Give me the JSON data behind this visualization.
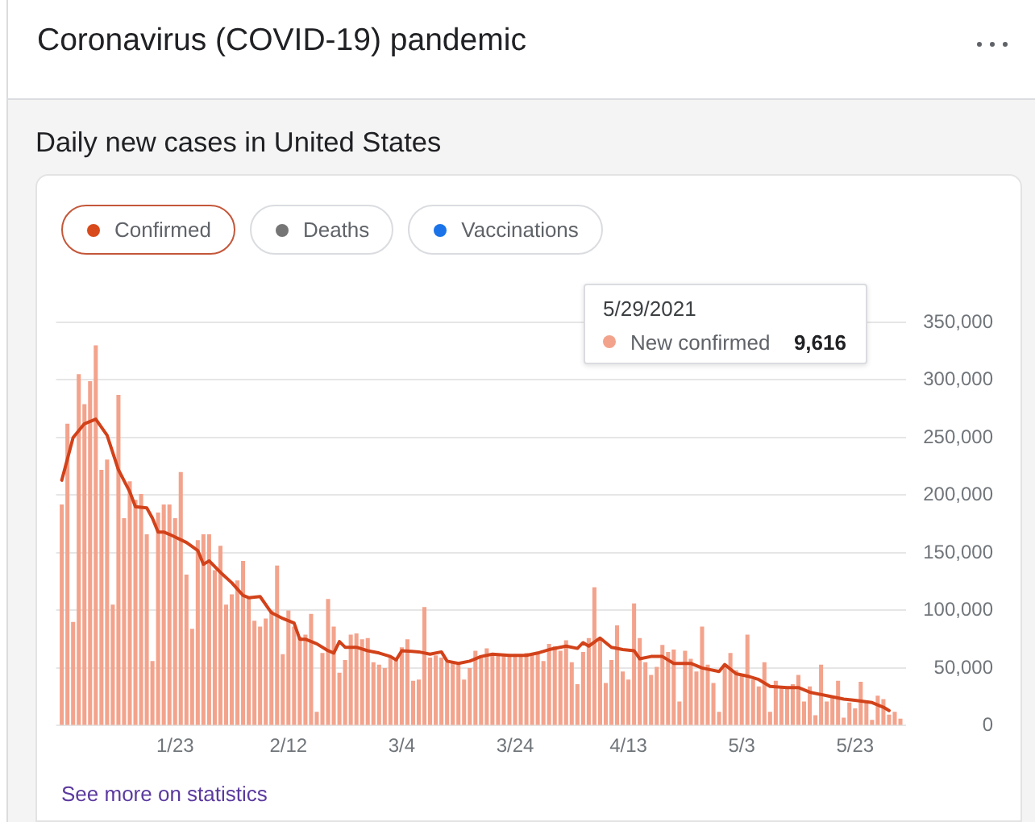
{
  "chart_data": {
    "type": "bar",
    "title": "Coronavirus (COVID-19) pandemic",
    "subtitle": "Daily new cases in United States",
    "x": [
      "2021-01-03",
      "2021-01-04",
      "2021-01-05",
      "2021-01-06",
      "2021-01-07",
      "2021-01-08",
      "2021-01-09",
      "2021-01-10",
      "2021-01-11",
      "2021-01-12",
      "2021-01-13",
      "2021-01-14",
      "2021-01-15",
      "2021-01-16",
      "2021-01-17",
      "2021-01-18",
      "2021-01-19",
      "2021-01-20",
      "2021-01-21",
      "2021-01-22",
      "2021-01-23",
      "2021-01-24",
      "2021-01-25",
      "2021-01-26",
      "2021-01-27",
      "2021-01-28",
      "2021-01-29",
      "2021-01-30",
      "2021-01-31",
      "2021-02-01",
      "2021-02-02",
      "2021-02-03",
      "2021-02-04",
      "2021-02-05",
      "2021-02-06",
      "2021-02-07",
      "2021-02-08",
      "2021-02-09",
      "2021-02-10",
      "2021-02-11",
      "2021-02-12",
      "2021-02-13",
      "2021-02-14",
      "2021-02-15",
      "2021-02-16",
      "2021-02-17",
      "2021-02-18",
      "2021-02-19",
      "2021-02-20",
      "2021-02-21",
      "2021-02-22",
      "2021-02-23",
      "2021-02-24",
      "2021-02-25",
      "2021-02-26",
      "2021-02-27",
      "2021-02-28",
      "2021-03-01",
      "2021-03-02",
      "2021-03-03",
      "2021-03-04",
      "2021-03-05",
      "2021-03-06",
      "2021-03-07",
      "2021-03-08",
      "2021-03-09",
      "2021-03-10",
      "2021-03-11",
      "2021-03-12",
      "2021-03-13",
      "2021-03-14",
      "2021-03-15",
      "2021-03-16",
      "2021-03-17",
      "2021-03-18",
      "2021-03-19",
      "2021-03-20",
      "2021-03-21",
      "2021-03-22",
      "2021-03-23",
      "2021-03-24",
      "2021-03-25",
      "2021-03-26",
      "2021-03-27",
      "2021-03-28",
      "2021-03-29",
      "2021-03-30",
      "2021-03-31",
      "2021-04-01",
      "2021-04-02",
      "2021-04-03",
      "2021-04-04",
      "2021-04-05",
      "2021-04-06",
      "2021-04-07",
      "2021-04-08",
      "2021-04-09",
      "2021-04-10",
      "2021-04-11",
      "2021-04-12",
      "2021-04-13",
      "2021-04-14",
      "2021-04-15",
      "2021-04-16",
      "2021-04-17",
      "2021-04-18",
      "2021-04-19",
      "2021-04-20",
      "2021-04-21",
      "2021-04-22",
      "2021-04-23",
      "2021-04-24",
      "2021-04-25",
      "2021-04-26",
      "2021-04-27",
      "2021-04-28",
      "2021-04-29",
      "2021-04-30",
      "2021-05-01",
      "2021-05-02",
      "2021-05-03",
      "2021-05-04",
      "2021-05-05",
      "2021-05-06",
      "2021-05-07",
      "2021-05-08",
      "2021-05-09",
      "2021-05-10",
      "2021-05-11",
      "2021-05-12",
      "2021-05-13",
      "2021-05-14",
      "2021-05-15",
      "2021-05-16",
      "2021-05-17",
      "2021-05-18",
      "2021-05-19",
      "2021-05-20",
      "2021-05-21",
      "2021-05-22",
      "2021-05-23",
      "2021-05-24",
      "2021-05-25",
      "2021-05-26",
      "2021-05-27",
      "2021-05-28",
      "2021-05-29",
      "2021-05-30",
      "2021-05-31"
    ],
    "series": [
      {
        "name": "New confirmed",
        "color": "#f3a38c",
        "values": [
          192000,
          262000,
          90000,
          305000,
          279000,
          299000,
          330000,
          222000,
          231000,
          105000,
          287000,
          180000,
          212000,
          196000,
          201000,
          166000,
          56000,
          185000,
          192000,
          192000,
          180000,
          220000,
          131000,
          84000,
          161000,
          166000,
          166000,
          135000,
          156000,
          105000,
          114000,
          126000,
          143000,
          112000,
          91000,
          86000,
          93000,
          100000,
          139000,
          62000,
          100000,
          86000,
          77000,
          79000,
          97000,
          12000,
          63000,
          110000,
          86000,
          46000,
          57000,
          79000,
          80000,
          75000,
          76000,
          55000,
          53000,
          50000,
          59000,
          59000,
          68000,
          75000,
          39000,
          40000,
          103000,
          59000,
          61000,
          59000,
          55000,
          55000,
          53000,
          40000,
          50000,
          65000,
          61000,
          67000,
          61000,
          61000,
          62000,
          62000,
          62000,
          62000,
          63000,
          63000,
          63000,
          56000,
          71000,
          69000,
          65000,
          74000,
          55000,
          36000,
          64000,
          76000,
          120000,
          76000,
          37000,
          57000,
          87000,
          47000,
          40000,
          106000,
          76000,
          55000,
          44000,
          51000,
          70000,
          64000,
          66000,
          21000,
          65000,
          58000,
          47000,
          86000,
          53000,
          37000,
          12000,
          51000,
          63000,
          48000,
          44000,
          79000,
          40000,
          34000,
          55000,
          12000,
          39000,
          34000,
          34000,
          36000,
          44000,
          21000,
          34000,
          9000,
          53000,
          21000,
          25000,
          39000,
          7000,
          20000,
          15000,
          38000,
          20000,
          5000,
          26000,
          23000,
          9616,
          12000,
          6000
        ]
      },
      {
        "type": "line",
        "color": "#d2421a",
        "x": [
          "2021-01-03",
          "2021-01-05",
          "2021-01-07",
          "2021-01-09",
          "2021-01-11",
          "2021-01-13",
          "2021-01-15",
          "2021-01-16",
          "2021-01-18",
          "2021-01-19",
          "2021-01-20",
          "2021-01-21",
          "2021-01-22",
          "2021-01-25",
          "2021-01-27",
          "2021-01-28",
          "2021-01-29",
          "2021-01-31",
          "2021-02-02",
          "2021-02-04",
          "2021-02-05",
          "2021-02-07",
          "2021-02-09",
          "2021-02-11",
          "2021-02-13",
          "2021-02-14",
          "2021-02-15",
          "2021-02-17",
          "2021-02-19",
          "2021-02-20",
          "2021-02-21",
          "2021-02-22",
          "2021-02-24",
          "2021-02-26",
          "2021-02-28",
          "2021-03-02",
          "2021-03-03",
          "2021-03-04",
          "2021-03-07",
          "2021-03-09",
          "2021-03-11",
          "2021-03-12",
          "2021-03-14",
          "2021-03-16",
          "2021-03-18",
          "2021-03-20",
          "2021-03-23",
          "2021-03-26",
          "2021-03-28",
          "2021-03-30",
          "2021-04-02",
          "2021-04-04",
          "2021-04-05",
          "2021-04-06",
          "2021-04-08",
          "2021-04-10",
          "2021-04-12",
          "2021-04-14",
          "2021-04-15",
          "2021-04-17",
          "2021-04-19",
          "2021-04-21",
          "2021-04-24",
          "2021-04-26",
          "2021-04-29",
          "2021-04-30",
          "2021-05-02",
          "2021-05-04",
          "2021-05-06",
          "2021-05-08",
          "2021-05-11",
          "2021-05-13",
          "2021-05-15",
          "2021-05-18",
          "2021-05-21",
          "2021-05-23",
          "2021-05-26",
          "2021-05-28",
          "2021-05-29"
        ],
        "values": [
          213000,
          250000,
          262000,
          266000,
          252000,
          222000,
          203000,
          190000,
          189000,
          180000,
          168000,
          168000,
          166000,
          159000,
          152000,
          140000,
          143000,
          133000,
          124000,
          113000,
          111000,
          112000,
          98000,
          93000,
          89000,
          75000,
          75000,
          71000,
          65000,
          63000,
          73000,
          68000,
          68000,
          65000,
          63000,
          60000,
          57000,
          65000,
          64000,
          62000,
          64000,
          56000,
          54000,
          56000,
          60000,
          62000,
          61000,
          61000,
          63000,
          66000,
          69000,
          67000,
          72000,
          69000,
          76000,
          68000,
          66000,
          65000,
          58000,
          60000,
          60000,
          54000,
          54000,
          50000,
          47000,
          53000,
          45000,
          43000,
          40000,
          34000,
          33000,
          33000,
          29000,
          26000,
          23000,
          22000,
          20000,
          16000,
          13000
        ]
      }
    ],
    "xlim": [
      "2021-01-02",
      "2021-06-01"
    ],
    "xticks": [
      {
        "value": "2021-01-23",
        "label": "1/23"
      },
      {
        "value": "2021-02-12",
        "label": "2/12"
      },
      {
        "value": "2021-03-04",
        "label": "3/4"
      },
      {
        "value": "2021-03-24",
        "label": "3/24"
      },
      {
        "value": "2021-04-13",
        "label": "4/13"
      },
      {
        "value": "2021-05-03",
        "label": "5/3"
      },
      {
        "value": "2021-05-23",
        "label": "5/23"
      }
    ],
    "ylim": [
      0,
      350000
    ],
    "yticks": [
      0,
      {
        "value": 50000,
        "label": "50,000"
      },
      {
        "value": 100000,
        "label": "100,000"
      },
      {
        "value": 150000,
        "label": "150,000"
      },
      {
        "value": 200000,
        "label": "200,000"
      },
      {
        "value": 250000,
        "label": "250,000"
      },
      {
        "value": 300000,
        "label": "300,000"
      },
      {
        "value": 350000,
        "label": "350,000"
      }
    ],
    "grid": "y",
    "annotations": [
      "Confirmed",
      "Deaths",
      "Vaccinations",
      "5/29/2021",
      "9,616",
      "See more on statistics"
    ]
  }
}
